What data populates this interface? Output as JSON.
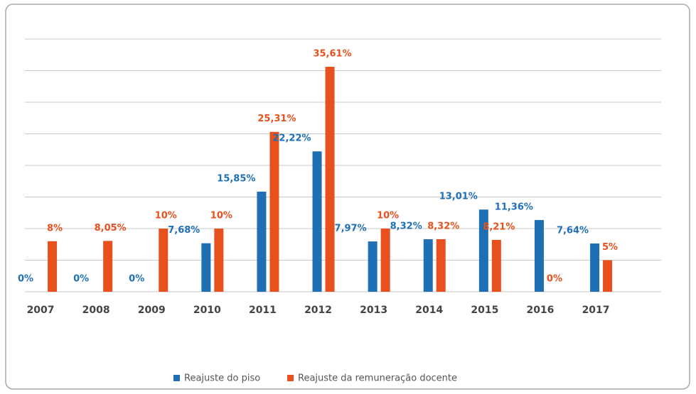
{
  "chart_data": {
    "type": "bar",
    "categories": [
      "2007",
      "2008",
      "2009",
      "2010",
      "2011",
      "2012",
      "2013",
      "2014",
      "2015",
      "2016",
      "2017"
    ],
    "series": [
      {
        "name": "Reajuste do piso",
        "color": "#1f6fb5",
        "values": [
          0,
          0,
          0,
          7.68,
          15.85,
          22.22,
          7.97,
          8.32,
          13.01,
          11.36,
          7.64
        ],
        "value_labels": [
          "0%",
          "0%",
          "0%",
          "7,68%",
          "15,85%",
          "22,22%",
          "7,97%",
          "8,32%",
          "13,01%",
          "11,36%",
          "7,64%"
        ]
      },
      {
        "name": "Reajuste da remuneração docente",
        "color": "#e8511d",
        "values": [
          8,
          8.05,
          10,
          10,
          25.31,
          35.61,
          10,
          8.32,
          8.21,
          0,
          5
        ],
        "value_labels": [
          "8%",
          "8,05%",
          "10%",
          "10%",
          "25,31%",
          "35,61%",
          "10%",
          "8,32%",
          "8,21%",
          "0%",
          "5%"
        ]
      }
    ],
    "ylim": [
      0,
      40
    ],
    "yticks": [
      0,
      5,
      10,
      15,
      20,
      25,
      30,
      35,
      40
    ],
    "grid": true,
    "legend": "bottom"
  }
}
